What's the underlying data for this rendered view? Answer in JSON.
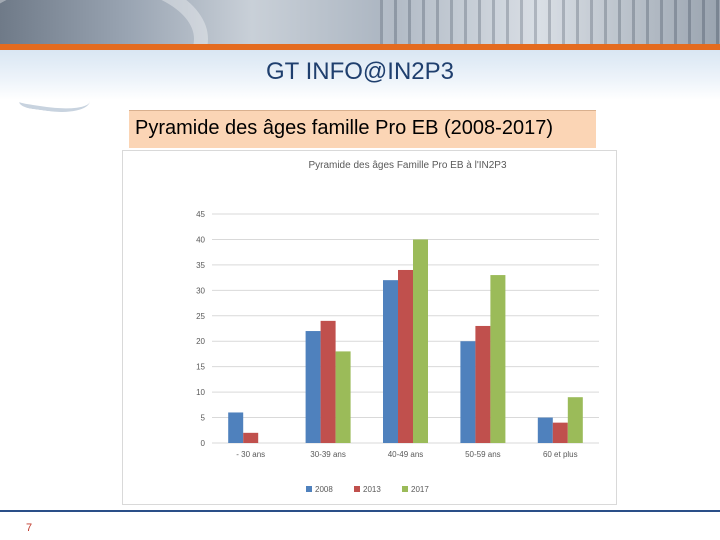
{
  "slide": {
    "title": "GT INFO@IN2P3",
    "subtitle": "Pyramide des âges famille Pro EB (2008-2017)",
    "page_number": "7"
  },
  "colors": {
    "accent_orange": "#e46b1f",
    "title_blue": "#1f3f6e",
    "subtitle_bg": "#fbd5b5"
  },
  "chart_data": {
    "type": "bar",
    "title": "Pyramide des âges Famille Pro EB à l'IN2P3",
    "categories": [
      "- 30 ans",
      "30-39 ans",
      "40-49 ans",
      "50-59 ans",
      "60 et plus"
    ],
    "series": [
      {
        "name": "2008",
        "color": "#4f81bd",
        "values": [
          6,
          22,
          32,
          20,
          5
        ]
      },
      {
        "name": "2013",
        "color": "#c0504d",
        "values": [
          2,
          24,
          34,
          23,
          4
        ]
      },
      {
        "name": "2017",
        "color": "#9bbb59",
        "values": [
          0,
          18,
          40,
          33,
          9
        ]
      }
    ],
    "yticks": [
      0,
      5,
      10,
      15,
      20,
      25,
      30,
      35,
      40,
      45
    ],
    "ylim": [
      0,
      45
    ],
    "grid": true,
    "legend": "bottom"
  }
}
